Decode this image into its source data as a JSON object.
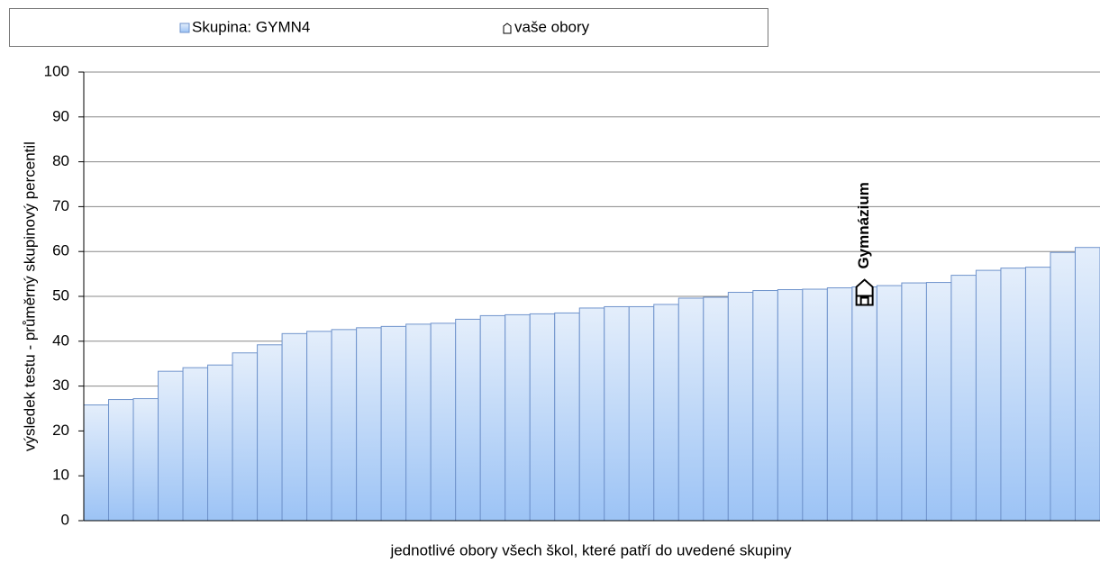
{
  "chart_data": {
    "type": "bar",
    "x_label": "jednotlivé obory všech škol, které patří do uvedené skupiny",
    "y_label": "výsledek testu - průměrný skupinový percentil",
    "categories": [
      null,
      null,
      null,
      null,
      null,
      null,
      null,
      null,
      null,
      null,
      null,
      null,
      null,
      null,
      null,
      null,
      null,
      null,
      null,
      null,
      null,
      null,
      null,
      null,
      null,
      null,
      null,
      null,
      null,
      null,
      null,
      null,
      null,
      null,
      null,
      null,
      null,
      null,
      null,
      null,
      null
    ],
    "series": [
      {
        "name": "Skupina: GYMN4",
        "color": "#9cc3f5",
        "values": [
          25.8,
          27,
          27.2,
          33.3,
          34.1,
          34.7,
          37.4,
          39.2,
          41.7,
          42.2,
          42.6,
          43,
          43.3,
          43.8,
          44,
          44.9,
          45.7,
          45.9,
          46.1,
          46.3,
          47.4,
          47.7,
          47.7,
          48.2,
          49.6,
          49.8,
          50.9,
          51.3,
          51.5,
          51.6,
          51.9,
          52.1,
          52.4,
          53,
          53.1,
          54.7,
          55.8,
          56.3,
          56.5,
          59.8,
          60.9
        ]
      },
      {
        "name": "vaše obory",
        "color": "#000000",
        "values": [
          null,
          null,
          null,
          null,
          null,
          null,
          null,
          null,
          null,
          null,
          null,
          null,
          null,
          null,
          null,
          null,
          null,
          null,
          null,
          null,
          null,
          null,
          null,
          null,
          null,
          null,
          null,
          null,
          null,
          null,
          null,
          52.1,
          null,
          null,
          null,
          null,
          null,
          null,
          null,
          null,
          null
        ],
        "value_labels": [
          null,
          null,
          null,
          null,
          null,
          null,
          null,
          null,
          null,
          null,
          null,
          null,
          null,
          null,
          null,
          null,
          null,
          null,
          null,
          null,
          null,
          null,
          null,
          null,
          null,
          null,
          null,
          null,
          null,
          null,
          null,
          "Gymnázium",
          null,
          null,
          null,
          null,
          null,
          null,
          null,
          null,
          null
        ]
      }
    ],
    "ylim": [
      0,
      100
    ],
    "yticks": [
      0,
      10,
      20,
      30,
      40,
      50,
      60,
      70,
      80,
      90,
      100
    ],
    "grid": true,
    "legend": "top"
  }
}
